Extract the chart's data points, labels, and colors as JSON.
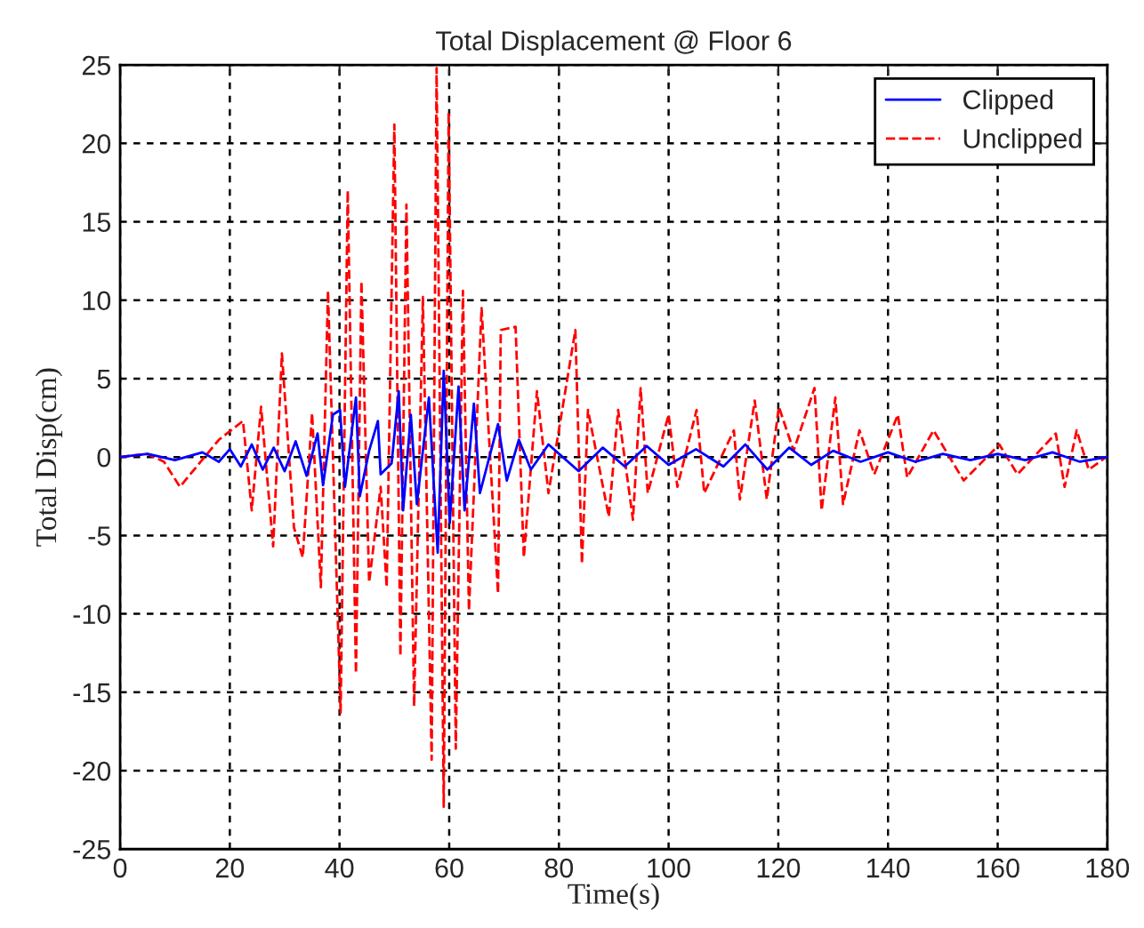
{
  "chart_data": {
    "type": "line",
    "title": "Total Displacement @ Floor 6",
    "xlabel": "Time(s)",
    "ylabel": "Total Disp(cm)",
    "xlim": [
      0,
      180
    ],
    "xticks": [
      0,
      20,
      40,
      60,
      80,
      100,
      120,
      140,
      160,
      180
    ],
    "ylim": [
      -25,
      25
    ],
    "yticks": [
      -25,
      -20,
      -15,
      -10,
      -5,
      0,
      5,
      10,
      15,
      20,
      25
    ],
    "grid": true,
    "legend": "top right",
    "series": [
      {
        "name": "Clipped",
        "color": "#0000ff",
        "line_style": "solid",
        "x": [
          0,
          5,
          10,
          15,
          18,
          20,
          22,
          24,
          26,
          28,
          30,
          32,
          34,
          36,
          37,
          38.8,
          40.1,
          41,
          43,
          43.7,
          45.4,
          47,
          47.5,
          49.5,
          50.8,
          51.6,
          53,
          54.1,
          56.3,
          57.9,
          59,
          60.1,
          61.7,
          62.8,
          64.5,
          65.6,
          68.9,
          70.5,
          72.7,
          74.9,
          78.1,
          83.6,
          88,
          92,
          96,
          100,
          105,
          110,
          114,
          118,
          122,
          126,
          130,
          135,
          140,
          145,
          150,
          155,
          160,
          165,
          170,
          175,
          180
        ],
        "values": [
          0,
          0.2,
          -0.2,
          0.3,
          -0.3,
          0.5,
          -0.6,
          0.8,
          -0.8,
          0.6,
          -0.9,
          1,
          -1.2,
          1.5,
          -1.8,
          2.7,
          3,
          -1.9,
          3.8,
          -2.5,
          0.4,
          2.3,
          -1.1,
          -0.4,
          4.2,
          -3.4,
          2.7,
          -3,
          3.8,
          -6.1,
          5.5,
          -4.2,
          4.5,
          -3.4,
          3.4,
          -2.3,
          2.1,
          -1.5,
          1.1,
          -0.8,
          0.8,
          -0.9,
          0.6,
          -0.6,
          0.7,
          -0.5,
          0.5,
          -0.6,
          0.8,
          -0.8,
          0.6,
          -0.5,
          0.4,
          -0.3,
          0.3,
          -0.3,
          0.2,
          -0.2,
          0.2,
          -0.2,
          0.3,
          -0.3,
          0
        ]
      },
      {
        "name": "Unclipped",
        "color": "#ff0000",
        "line_style": "dashed",
        "x": [
          0,
          5,
          8,
          10.9,
          18,
          22.4,
          24,
          25.7,
          27.9,
          29.5,
          31.7,
          33.3,
          35,
          36.6,
          37.9,
          40.2,
          41.5,
          43,
          44,
          45.4,
          47.5,
          48.6,
          50,
          51.1,
          52.2,
          53.6,
          55.2,
          56.8,
          57.7,
          59,
          59.9,
          61.2,
          62.5,
          63.6,
          65.9,
          68.9,
          69.4,
          72.1,
          73.6,
          76,
          78.1,
          83,
          84.2,
          85.3,
          89.1,
          90.8,
          93.5,
          94.9,
          96.2,
          100,
          101.6,
          105.1,
          106.5,
          111.9,
          113,
          115.7,
          117.9,
          120.1,
          122.8,
          126.6,
          127.9,
          130.4,
          131.8,
          134.8,
          137.5,
          141.8,
          143.5,
          148.3,
          153.8,
          160.3,
          163.6,
          170.6,
          172.2,
          174.4,
          176.6,
          179.8
        ],
        "values": [
          0,
          0.2,
          -0.3,
          -1.9,
          1.1,
          2.3,
          -3.4,
          3.2,
          -5.7,
          6.6,
          -4.5,
          -6.4,
          2.8,
          -8.3,
          10.6,
          -16.3,
          17,
          -13.8,
          11.2,
          -8,
          -1.9,
          -8.3,
          21.2,
          -12.7,
          16.1,
          -15.9,
          10.2,
          -19.3,
          24.8,
          -22.3,
          22,
          -18.6,
          10.6,
          -9.8,
          9.5,
          -8.7,
          8.1,
          8.3,
          -6.4,
          4.2,
          -2.3,
          8.1,
          -6.8,
          3,
          -3.8,
          3,
          -4,
          4.4,
          -2.3,
          2.7,
          -1.9,
          3,
          -2.3,
          1.7,
          -2.7,
          3.6,
          -2.7,
          3.2,
          0.4,
          4.4,
          -3.4,
          3.8,
          -3,
          1.7,
          -1.1,
          2.7,
          -1.3,
          1.7,
          -1.5,
          0.8,
          -1.1,
          1.5,
          -1.9,
          1.7,
          -0.8,
          0
        ]
      }
    ]
  }
}
